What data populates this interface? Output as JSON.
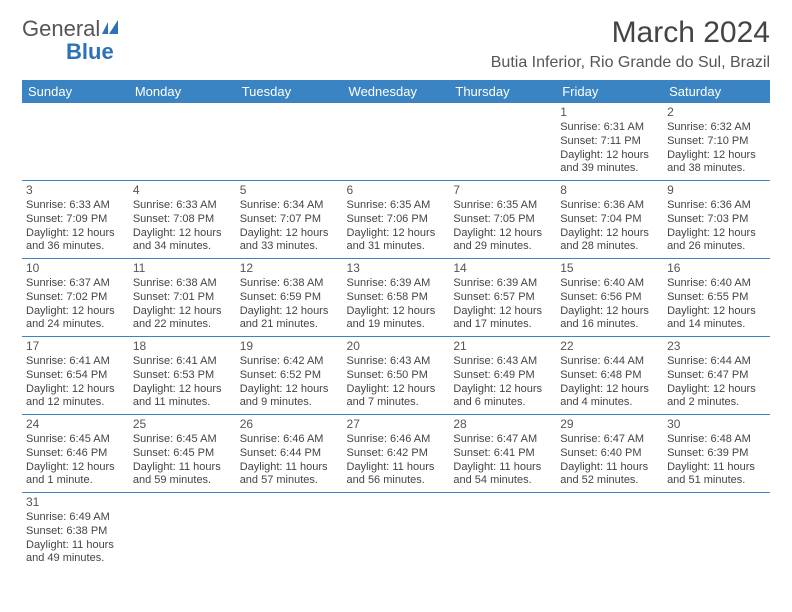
{
  "logo": {
    "text1": "General",
    "text2": "Blue"
  },
  "title": "March 2024",
  "location": "Butia Inferior, Rio Grande do Sul, Brazil",
  "weekdays": [
    "Sunday",
    "Monday",
    "Tuesday",
    "Wednesday",
    "Thursday",
    "Friday",
    "Saturday"
  ],
  "colors": {
    "header_bg": "#3b84c4",
    "header_fg": "#ffffff",
    "border": "#3b84c4",
    "text": "#444444",
    "logo_gray": "#555555",
    "logo_blue": "#2d72b8"
  },
  "weeks": [
    [
      null,
      null,
      null,
      null,
      null,
      {
        "n": "1",
        "sr": "Sunrise: 6:31 AM",
        "ss": "Sunset: 7:11 PM",
        "dl": "Daylight: 12 hours and 39 minutes."
      },
      {
        "n": "2",
        "sr": "Sunrise: 6:32 AM",
        "ss": "Sunset: 7:10 PM",
        "dl": "Daylight: 12 hours and 38 minutes."
      }
    ],
    [
      {
        "n": "3",
        "sr": "Sunrise: 6:33 AM",
        "ss": "Sunset: 7:09 PM",
        "dl": "Daylight: 12 hours and 36 minutes."
      },
      {
        "n": "4",
        "sr": "Sunrise: 6:33 AM",
        "ss": "Sunset: 7:08 PM",
        "dl": "Daylight: 12 hours and 34 minutes."
      },
      {
        "n": "5",
        "sr": "Sunrise: 6:34 AM",
        "ss": "Sunset: 7:07 PM",
        "dl": "Daylight: 12 hours and 33 minutes."
      },
      {
        "n": "6",
        "sr": "Sunrise: 6:35 AM",
        "ss": "Sunset: 7:06 PM",
        "dl": "Daylight: 12 hours and 31 minutes."
      },
      {
        "n": "7",
        "sr": "Sunrise: 6:35 AM",
        "ss": "Sunset: 7:05 PM",
        "dl": "Daylight: 12 hours and 29 minutes."
      },
      {
        "n": "8",
        "sr": "Sunrise: 6:36 AM",
        "ss": "Sunset: 7:04 PM",
        "dl": "Daylight: 12 hours and 28 minutes."
      },
      {
        "n": "9",
        "sr": "Sunrise: 6:36 AM",
        "ss": "Sunset: 7:03 PM",
        "dl": "Daylight: 12 hours and 26 minutes."
      }
    ],
    [
      {
        "n": "10",
        "sr": "Sunrise: 6:37 AM",
        "ss": "Sunset: 7:02 PM",
        "dl": "Daylight: 12 hours and 24 minutes."
      },
      {
        "n": "11",
        "sr": "Sunrise: 6:38 AM",
        "ss": "Sunset: 7:01 PM",
        "dl": "Daylight: 12 hours and 22 minutes."
      },
      {
        "n": "12",
        "sr": "Sunrise: 6:38 AM",
        "ss": "Sunset: 6:59 PM",
        "dl": "Daylight: 12 hours and 21 minutes."
      },
      {
        "n": "13",
        "sr": "Sunrise: 6:39 AM",
        "ss": "Sunset: 6:58 PM",
        "dl": "Daylight: 12 hours and 19 minutes."
      },
      {
        "n": "14",
        "sr": "Sunrise: 6:39 AM",
        "ss": "Sunset: 6:57 PM",
        "dl": "Daylight: 12 hours and 17 minutes."
      },
      {
        "n": "15",
        "sr": "Sunrise: 6:40 AM",
        "ss": "Sunset: 6:56 PM",
        "dl": "Daylight: 12 hours and 16 minutes."
      },
      {
        "n": "16",
        "sr": "Sunrise: 6:40 AM",
        "ss": "Sunset: 6:55 PM",
        "dl": "Daylight: 12 hours and 14 minutes."
      }
    ],
    [
      {
        "n": "17",
        "sr": "Sunrise: 6:41 AM",
        "ss": "Sunset: 6:54 PM",
        "dl": "Daylight: 12 hours and 12 minutes."
      },
      {
        "n": "18",
        "sr": "Sunrise: 6:41 AM",
        "ss": "Sunset: 6:53 PM",
        "dl": "Daylight: 12 hours and 11 minutes."
      },
      {
        "n": "19",
        "sr": "Sunrise: 6:42 AM",
        "ss": "Sunset: 6:52 PM",
        "dl": "Daylight: 12 hours and 9 minutes."
      },
      {
        "n": "20",
        "sr": "Sunrise: 6:43 AM",
        "ss": "Sunset: 6:50 PM",
        "dl": "Daylight: 12 hours and 7 minutes."
      },
      {
        "n": "21",
        "sr": "Sunrise: 6:43 AM",
        "ss": "Sunset: 6:49 PM",
        "dl": "Daylight: 12 hours and 6 minutes."
      },
      {
        "n": "22",
        "sr": "Sunrise: 6:44 AM",
        "ss": "Sunset: 6:48 PM",
        "dl": "Daylight: 12 hours and 4 minutes."
      },
      {
        "n": "23",
        "sr": "Sunrise: 6:44 AM",
        "ss": "Sunset: 6:47 PM",
        "dl": "Daylight: 12 hours and 2 minutes."
      }
    ],
    [
      {
        "n": "24",
        "sr": "Sunrise: 6:45 AM",
        "ss": "Sunset: 6:46 PM",
        "dl": "Daylight: 12 hours and 1 minute."
      },
      {
        "n": "25",
        "sr": "Sunrise: 6:45 AM",
        "ss": "Sunset: 6:45 PM",
        "dl": "Daylight: 11 hours and 59 minutes."
      },
      {
        "n": "26",
        "sr": "Sunrise: 6:46 AM",
        "ss": "Sunset: 6:44 PM",
        "dl": "Daylight: 11 hours and 57 minutes."
      },
      {
        "n": "27",
        "sr": "Sunrise: 6:46 AM",
        "ss": "Sunset: 6:42 PM",
        "dl": "Daylight: 11 hours and 56 minutes."
      },
      {
        "n": "28",
        "sr": "Sunrise: 6:47 AM",
        "ss": "Sunset: 6:41 PM",
        "dl": "Daylight: 11 hours and 54 minutes."
      },
      {
        "n": "29",
        "sr": "Sunrise: 6:47 AM",
        "ss": "Sunset: 6:40 PM",
        "dl": "Daylight: 11 hours and 52 minutes."
      },
      {
        "n": "30",
        "sr": "Sunrise: 6:48 AM",
        "ss": "Sunset: 6:39 PM",
        "dl": "Daylight: 11 hours and 51 minutes."
      }
    ],
    [
      {
        "n": "31",
        "sr": "Sunrise: 6:49 AM",
        "ss": "Sunset: 6:38 PM",
        "dl": "Daylight: 11 hours and 49 minutes."
      },
      null,
      null,
      null,
      null,
      null,
      null
    ]
  ]
}
